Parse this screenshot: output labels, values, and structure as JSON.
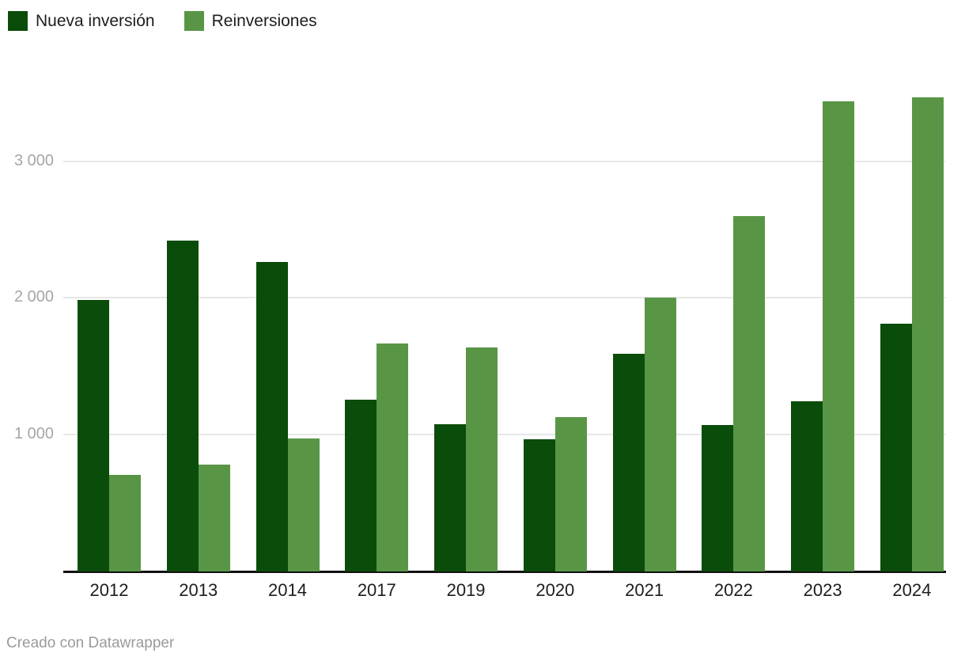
{
  "legend": {
    "items": [
      {
        "label": "Nueva inversión",
        "color": "#0a4c0a"
      },
      {
        "label": "Reinversiones",
        "color": "#589646"
      }
    ]
  },
  "chart_data": {
    "type": "bar",
    "categories": [
      "2012",
      "2013",
      "2014",
      "2017",
      "2019",
      "2020",
      "2021",
      "2022",
      "2023",
      "2024"
    ],
    "series": [
      {
        "name": "Nueva inversión",
        "color": "#0a4c0a",
        "values": [
          1985,
          2420,
          2265,
          1255,
          1075,
          965,
          1590,
          1070,
          1245,
          1810
        ]
      },
      {
        "name": "Reinversiones",
        "color": "#589646",
        "values": [
          705,
          780,
          970,
          1665,
          1640,
          1130,
          2000,
          2600,
          3440,
          3465
        ]
      }
    ],
    "title": "",
    "xlabel": "",
    "ylabel": "",
    "ylim": [
      0,
      3600
    ],
    "yticks": [
      {
        "value": 1000,
        "label": "1 000"
      },
      {
        "value": 2000,
        "label": "2 000"
      },
      {
        "value": 3000,
        "label": "3 000"
      }
    ],
    "grid": "horizontal",
    "legend_position": "top-left"
  },
  "footer": {
    "credit": "Creado con Datawrapper"
  }
}
